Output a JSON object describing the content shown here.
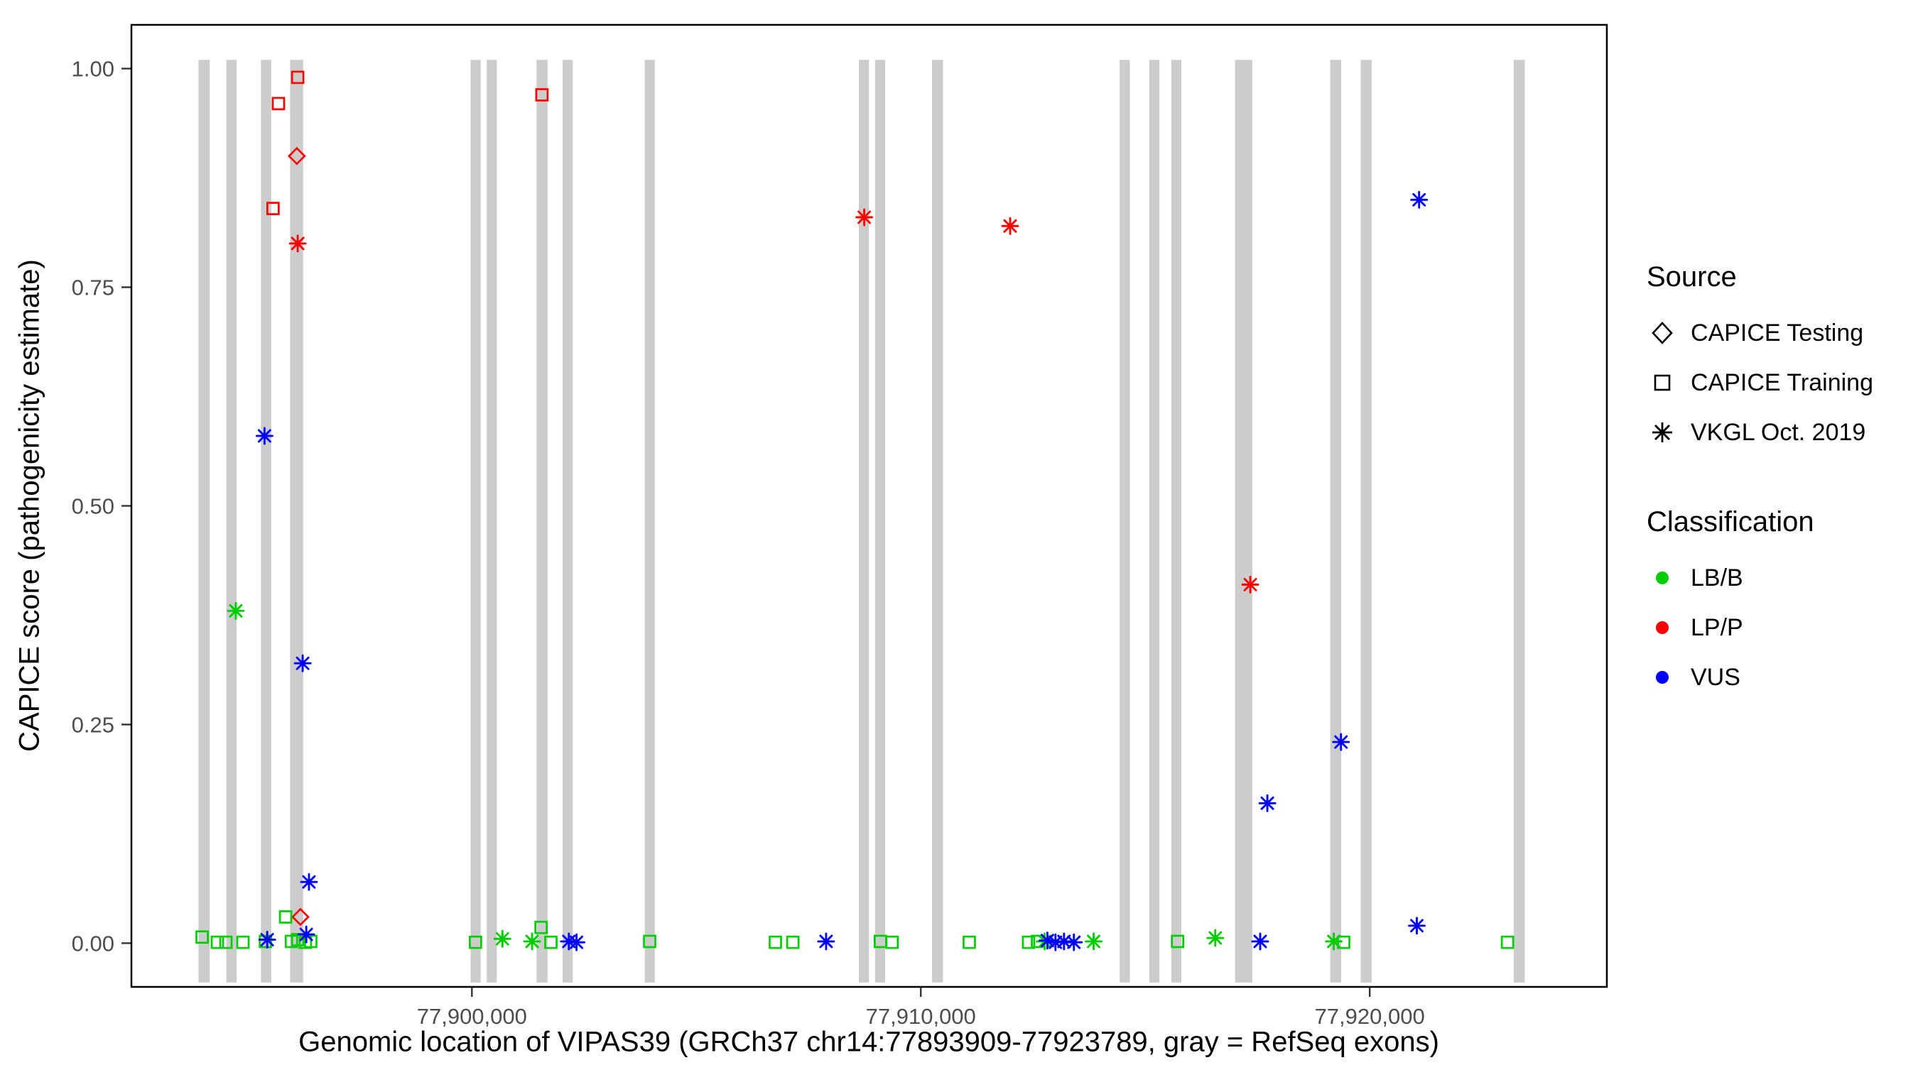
{
  "chart_data": {
    "type": "scatter",
    "title": "",
    "xlabel": "Genomic location of VIPAS39 (GRCh37 chr14:77893909-77923789, gray = RefSeq exons)",
    "ylabel": "CAPICE score (pathogenicity estimate)",
    "xlim": [
      77892415,
      77925283
    ],
    "ylim": [
      -0.05,
      1.05
    ],
    "grid": false,
    "x_ticks": [
      {
        "value": 77900000,
        "label": "77,900,000"
      },
      {
        "value": 77910000,
        "label": "77,910,000"
      },
      {
        "value": 77920000,
        "label": "77,920,000"
      }
    ],
    "y_ticks": [
      {
        "value": 0.0,
        "label": "0.00"
      },
      {
        "value": 0.25,
        "label": "0.25"
      },
      {
        "value": 0.5,
        "label": "0.50"
      },
      {
        "value": 0.75,
        "label": "0.75"
      },
      {
        "value": 1.0,
        "label": "1.00"
      }
    ],
    "exons_note": "gray vertical bars = RefSeq exons",
    "exons": [
      [
        77893909,
        77894160
      ],
      [
        77894530,
        77894760
      ],
      [
        77895300,
        77895530
      ],
      [
        77895950,
        77896240
      ],
      [
        77899970,
        77900195
      ],
      [
        77900330,
        77900555
      ],
      [
        77901440,
        77901685
      ],
      [
        77902020,
        77902245
      ],
      [
        77903850,
        77904075
      ],
      [
        77908620,
        77908845
      ],
      [
        77908980,
        77909205
      ],
      [
        77910250,
        77910495
      ],
      [
        77914430,
        77914655
      ],
      [
        77915090,
        77915315
      ],
      [
        77915580,
        77915805
      ],
      [
        77917000,
        77917385
      ],
      [
        77919120,
        77919365
      ],
      [
        77919800,
        77920045
      ],
      [
        77923210,
        77923455
      ]
    ],
    "points": [
      {
        "pos": 77896100,
        "score": 0.9,
        "source": "CAPICE Testing",
        "classification": "LP/P"
      },
      {
        "pos": 77896180,
        "score": 0.03,
        "source": "CAPICE Testing",
        "classification": "LP/P"
      },
      {
        "pos": 77895570,
        "score": 0.84,
        "source": "CAPICE Training",
        "classification": "LP/P"
      },
      {
        "pos": 77895690,
        "score": 0.96,
        "source": "CAPICE Training",
        "classification": "LP/P"
      },
      {
        "pos": 77896120,
        "score": 0.99,
        "source": "CAPICE Training",
        "classification": "LP/P"
      },
      {
        "pos": 77901560,
        "score": 0.97,
        "source": "CAPICE Training",
        "classification": "LP/P"
      },
      {
        "pos": 77893990,
        "score": 0.007,
        "source": "CAPICE Training",
        "classification": "LB/B"
      },
      {
        "pos": 77894330,
        "score": 0.001,
        "source": "CAPICE Training",
        "classification": "LB/B"
      },
      {
        "pos": 77894520,
        "score": 0.001,
        "source": "CAPICE Training",
        "classification": "LB/B"
      },
      {
        "pos": 77894900,
        "score": 0.001,
        "source": "CAPICE Training",
        "classification": "LB/B"
      },
      {
        "pos": 77895400,
        "score": 0.002,
        "source": "CAPICE Training",
        "classification": "LB/B"
      },
      {
        "pos": 77895850,
        "score": 0.03,
        "source": "CAPICE Training",
        "classification": "LB/B"
      },
      {
        "pos": 77895980,
        "score": 0.002,
        "source": "CAPICE Training",
        "classification": "LB/B"
      },
      {
        "pos": 77896120,
        "score": 0.004,
        "source": "CAPICE Training",
        "classification": "LB/B"
      },
      {
        "pos": 77896290,
        "score": 0.001,
        "source": "CAPICE Training",
        "classification": "LB/B"
      },
      {
        "pos": 77896410,
        "score": 0.002,
        "source": "CAPICE Training",
        "classification": "LB/B"
      },
      {
        "pos": 77900080,
        "score": 0.001,
        "source": "CAPICE Training",
        "classification": "LB/B"
      },
      {
        "pos": 77901540,
        "score": 0.018,
        "source": "CAPICE Training",
        "classification": "LB/B"
      },
      {
        "pos": 77901760,
        "score": 0.001,
        "source": "CAPICE Training",
        "classification": "LB/B"
      },
      {
        "pos": 77903960,
        "score": 0.002,
        "source": "CAPICE Training",
        "classification": "LB/B"
      },
      {
        "pos": 77906760,
        "score": 0.001,
        "source": "CAPICE Training",
        "classification": "LB/B"
      },
      {
        "pos": 77907150,
        "score": 0.001,
        "source": "CAPICE Training",
        "classification": "LB/B"
      },
      {
        "pos": 77909100,
        "score": 0.002,
        "source": "CAPICE Training",
        "classification": "LB/B"
      },
      {
        "pos": 77909360,
        "score": 0.001,
        "source": "CAPICE Training",
        "classification": "LB/B"
      },
      {
        "pos": 77911080,
        "score": 0.001,
        "source": "CAPICE Training",
        "classification": "LB/B"
      },
      {
        "pos": 77912400,
        "score": 0.001,
        "source": "CAPICE Training",
        "classification": "LB/B"
      },
      {
        "pos": 77912600,
        "score": 0.002,
        "source": "CAPICE Training",
        "classification": "LB/B"
      },
      {
        "pos": 77915720,
        "score": 0.002,
        "source": "CAPICE Training",
        "classification": "LB/B"
      },
      {
        "pos": 77919420,
        "score": 0.001,
        "source": "CAPICE Training",
        "classification": "LB/B"
      },
      {
        "pos": 77923070,
        "score": 0.001,
        "source": "CAPICE Training",
        "classification": "LB/B"
      },
      {
        "pos": 77894740,
        "score": 0.38,
        "source": "VKGL Oct. 2019",
        "classification": "LB/B"
      },
      {
        "pos": 77900680,
        "score": 0.005,
        "source": "VKGL Oct. 2019",
        "classification": "LB/B"
      },
      {
        "pos": 77901340,
        "score": 0.002,
        "source": "VKGL Oct. 2019",
        "classification": "LB/B"
      },
      {
        "pos": 77912760,
        "score": 0.002,
        "source": "VKGL Oct. 2019",
        "classification": "LB/B"
      },
      {
        "pos": 77913850,
        "score": 0.002,
        "source": "VKGL Oct. 2019",
        "classification": "LB/B"
      },
      {
        "pos": 77916560,
        "score": 0.006,
        "source": "VKGL Oct. 2019",
        "classification": "LB/B"
      },
      {
        "pos": 77919200,
        "score": 0.002,
        "source": "VKGL Oct. 2019",
        "classification": "LB/B"
      },
      {
        "pos": 77895380,
        "score": 0.58,
        "source": "VKGL Oct. 2019",
        "classification": "VUS"
      },
      {
        "pos": 77896230,
        "score": 0.32,
        "source": "VKGL Oct. 2019",
        "classification": "VUS"
      },
      {
        "pos": 77896370,
        "score": 0.07,
        "source": "VKGL Oct. 2019",
        "classification": "VUS"
      },
      {
        "pos": 77895440,
        "score": 0.004,
        "source": "VKGL Oct. 2019",
        "classification": "VUS"
      },
      {
        "pos": 77896310,
        "score": 0.01,
        "source": "VKGL Oct. 2019",
        "classification": "VUS"
      },
      {
        "pos": 77902160,
        "score": 0.002,
        "source": "VKGL Oct. 2019",
        "classification": "VUS"
      },
      {
        "pos": 77902330,
        "score": 0.001,
        "source": "VKGL Oct. 2019",
        "classification": "VUS"
      },
      {
        "pos": 77907890,
        "score": 0.002,
        "source": "VKGL Oct. 2019",
        "classification": "VUS"
      },
      {
        "pos": 77912820,
        "score": 0.003,
        "source": "VKGL Oct. 2019",
        "classification": "VUS"
      },
      {
        "pos": 77913000,
        "score": 0.001,
        "source": "VKGL Oct. 2019",
        "classification": "VUS"
      },
      {
        "pos": 77913190,
        "score": 0.002,
        "source": "VKGL Oct. 2019",
        "classification": "VUS"
      },
      {
        "pos": 77913410,
        "score": 0.001,
        "source": "VKGL Oct. 2019",
        "classification": "VUS"
      },
      {
        "pos": 77917560,
        "score": 0.002,
        "source": "VKGL Oct. 2019",
        "classification": "VUS"
      },
      {
        "pos": 77917720,
        "score": 0.16,
        "source": "VKGL Oct. 2019",
        "classification": "VUS"
      },
      {
        "pos": 77919360,
        "score": 0.23,
        "source": "VKGL Oct. 2019",
        "classification": "VUS"
      },
      {
        "pos": 77921050,
        "score": 0.02,
        "source": "VKGL Oct. 2019",
        "classification": "VUS"
      },
      {
        "pos": 77921100,
        "score": 0.85,
        "source": "VKGL Oct. 2019",
        "classification": "VUS"
      },
      {
        "pos": 77896120,
        "score": 0.8,
        "source": "VKGL Oct. 2019",
        "classification": "LP/P"
      },
      {
        "pos": 77908740,
        "score": 0.83,
        "source": "VKGL Oct. 2019",
        "classification": "LP/P"
      },
      {
        "pos": 77911990,
        "score": 0.82,
        "source": "VKGL Oct. 2019",
        "classification": "LP/P"
      },
      {
        "pos": 77917340,
        "score": 0.41,
        "source": "VKGL Oct. 2019",
        "classification": "LP/P"
      }
    ]
  },
  "legend": {
    "source": {
      "title": "Source",
      "items": [
        {
          "label": "CAPICE Testing",
          "marker": "diamond"
        },
        {
          "label": "CAPICE Training",
          "marker": "square"
        },
        {
          "label": "VKGL Oct. 2019",
          "marker": "asterisk"
        }
      ]
    },
    "classification": {
      "title": "Classification",
      "items": [
        {
          "label": "LB/B",
          "color": "#00CD00"
        },
        {
          "label": "LP/P",
          "color": "#FF0000"
        },
        {
          "label": "VUS",
          "color": "#0000FF"
        }
      ]
    }
  },
  "colors": {
    "LB/B": "#00CD00",
    "LP/P": "#FF0000",
    "VUS": "#0000FF",
    "exon": "#CCCCCC",
    "axis_text": "#4D4D4D",
    "panel_border": "#000000"
  }
}
